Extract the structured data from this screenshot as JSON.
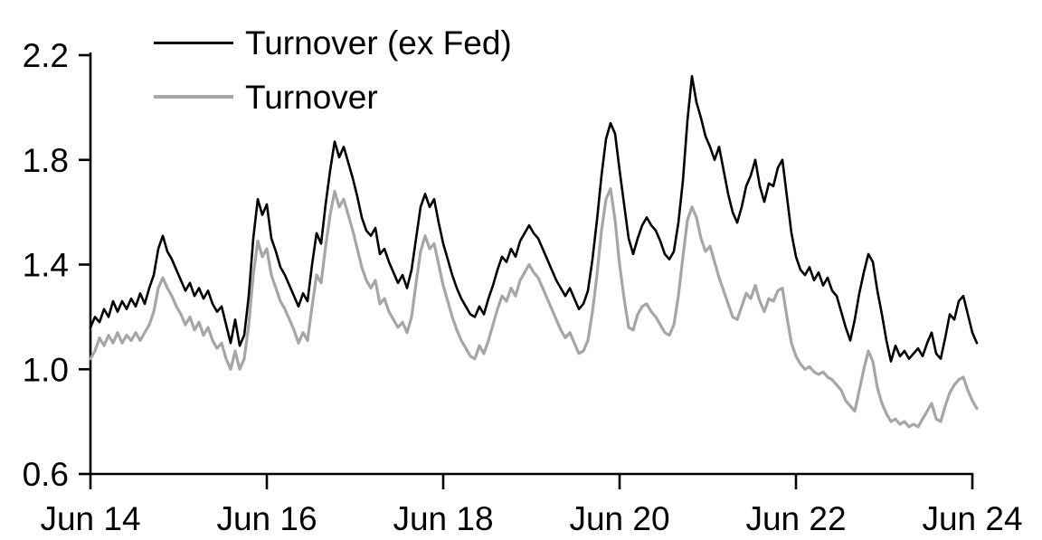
{
  "chart_data": {
    "type": "line",
    "title": "",
    "grid": false,
    "background_color": "#ffffff",
    "axis_color": "#000000",
    "x_axis": {
      "tick_labels": [
        "Jun 14",
        "Jun 16",
        "Jun 18",
        "Jun 20",
        "Jun 22",
        "Jun 24"
      ],
      "tick_years": [
        2014.45,
        2016.45,
        2018.45,
        2020.45,
        2022.45,
        2024.45
      ],
      "start_year": 2014.45,
      "step_years": 0.051282
    },
    "y_axis": {
      "tick_labels": [
        "0.6",
        "1.0",
        "1.4",
        "1.8",
        "2.2"
      ],
      "tick_values": [
        0.6,
        1.0,
        1.4,
        1.8,
        2.2
      ],
      "min": 0.6,
      "max": 2.2
    },
    "legend": {
      "position": "top-left-inside",
      "items": [
        {
          "label": "Turnover (ex Fed)",
          "color": "#000000",
          "line_width": 3
        },
        {
          "label": "Turnover",
          "color": "#a6a6a6",
          "line_width": 3.5
        }
      ]
    },
    "series": [
      {
        "id": "turnover-ex-fed",
        "name": "Turnover (ex Fed)",
        "color": "#000000",
        "stroke_width": 2.6,
        "values": [
          1.16,
          1.2,
          1.18,
          1.23,
          1.2,
          1.26,
          1.22,
          1.26,
          1.23,
          1.27,
          1.24,
          1.29,
          1.25,
          1.31,
          1.36,
          1.46,
          1.51,
          1.45,
          1.42,
          1.38,
          1.34,
          1.3,
          1.33,
          1.28,
          1.31,
          1.27,
          1.3,
          1.25,
          1.22,
          1.24,
          1.17,
          1.1,
          1.19,
          1.09,
          1.13,
          1.28,
          1.5,
          1.65,
          1.59,
          1.63,
          1.5,
          1.45,
          1.39,
          1.36,
          1.32,
          1.28,
          1.24,
          1.29,
          1.26,
          1.4,
          1.52,
          1.48,
          1.63,
          1.76,
          1.87,
          1.81,
          1.85,
          1.79,
          1.73,
          1.66,
          1.58,
          1.53,
          1.51,
          1.54,
          1.44,
          1.46,
          1.41,
          1.37,
          1.33,
          1.36,
          1.31,
          1.38,
          1.5,
          1.62,
          1.67,
          1.62,
          1.65,
          1.56,
          1.48,
          1.42,
          1.36,
          1.31,
          1.27,
          1.24,
          1.21,
          1.2,
          1.24,
          1.21,
          1.27,
          1.32,
          1.38,
          1.43,
          1.41,
          1.46,
          1.43,
          1.49,
          1.52,
          1.55,
          1.52,
          1.5,
          1.46,
          1.42,
          1.38,
          1.34,
          1.31,
          1.28,
          1.31,
          1.27,
          1.23,
          1.25,
          1.3,
          1.42,
          1.57,
          1.74,
          1.88,
          1.94,
          1.9,
          1.76,
          1.63,
          1.5,
          1.44,
          1.5,
          1.55,
          1.58,
          1.55,
          1.53,
          1.49,
          1.44,
          1.42,
          1.45,
          1.56,
          1.72,
          1.95,
          2.12,
          2.02,
          1.96,
          1.89,
          1.85,
          1.8,
          1.85,
          1.76,
          1.67,
          1.6,
          1.56,
          1.62,
          1.7,
          1.74,
          1.8,
          1.7,
          1.64,
          1.71,
          1.7,
          1.77,
          1.8,
          1.66,
          1.52,
          1.43,
          1.38,
          1.36,
          1.39,
          1.34,
          1.37,
          1.32,
          1.35,
          1.3,
          1.28,
          1.22,
          1.16,
          1.11,
          1.19,
          1.29,
          1.37,
          1.44,
          1.41,
          1.3,
          1.21,
          1.11,
          1.03,
          1.09,
          1.05,
          1.07,
          1.04,
          1.06,
          1.08,
          1.05,
          1.1,
          1.14,
          1.06,
          1.04,
          1.12,
          1.21,
          1.19,
          1.26,
          1.28,
          1.21,
          1.14,
          1.1
        ]
      },
      {
        "id": "turnover",
        "name": "Turnover",
        "color": "#a6a6a6",
        "stroke_width": 3.2,
        "values": [
          1.04,
          1.07,
          1.12,
          1.09,
          1.13,
          1.1,
          1.14,
          1.1,
          1.13,
          1.11,
          1.14,
          1.11,
          1.14,
          1.17,
          1.22,
          1.31,
          1.35,
          1.31,
          1.28,
          1.24,
          1.21,
          1.17,
          1.2,
          1.15,
          1.18,
          1.13,
          1.16,
          1.11,
          1.08,
          1.1,
          1.04,
          1.0,
          1.07,
          1.0,
          1.04,
          1.17,
          1.36,
          1.49,
          1.43,
          1.46,
          1.36,
          1.31,
          1.26,
          1.23,
          1.19,
          1.15,
          1.1,
          1.14,
          1.11,
          1.24,
          1.36,
          1.33,
          1.47,
          1.59,
          1.68,
          1.62,
          1.65,
          1.59,
          1.53,
          1.46,
          1.39,
          1.34,
          1.31,
          1.34,
          1.25,
          1.27,
          1.22,
          1.19,
          1.16,
          1.18,
          1.14,
          1.2,
          1.33,
          1.45,
          1.51,
          1.46,
          1.48,
          1.4,
          1.32,
          1.26,
          1.2,
          1.15,
          1.11,
          1.08,
          1.05,
          1.04,
          1.09,
          1.06,
          1.11,
          1.17,
          1.23,
          1.28,
          1.26,
          1.31,
          1.28,
          1.34,
          1.37,
          1.4,
          1.37,
          1.35,
          1.31,
          1.27,
          1.23,
          1.19,
          1.15,
          1.12,
          1.14,
          1.1,
          1.06,
          1.07,
          1.11,
          1.22,
          1.36,
          1.53,
          1.65,
          1.69,
          1.57,
          1.4,
          1.27,
          1.16,
          1.15,
          1.21,
          1.24,
          1.25,
          1.22,
          1.2,
          1.17,
          1.14,
          1.13,
          1.17,
          1.28,
          1.43,
          1.57,
          1.62,
          1.58,
          1.5,
          1.45,
          1.47,
          1.41,
          1.35,
          1.3,
          1.25,
          1.2,
          1.19,
          1.24,
          1.29,
          1.27,
          1.32,
          1.26,
          1.22,
          1.27,
          1.26,
          1.3,
          1.31,
          1.2,
          1.1,
          1.05,
          1.02,
          1.0,
          1.01,
          0.99,
          0.98,
          0.99,
          0.97,
          0.96,
          0.94,
          0.92,
          0.88,
          0.86,
          0.84,
          0.92,
          1.0,
          1.07,
          1.03,
          0.93,
          0.87,
          0.83,
          0.8,
          0.81,
          0.79,
          0.8,
          0.78,
          0.79,
          0.78,
          0.81,
          0.84,
          0.87,
          0.81,
          0.8,
          0.86,
          0.91,
          0.94,
          0.96,
          0.97,
          0.92,
          0.88,
          0.85
        ]
      }
    ]
  }
}
